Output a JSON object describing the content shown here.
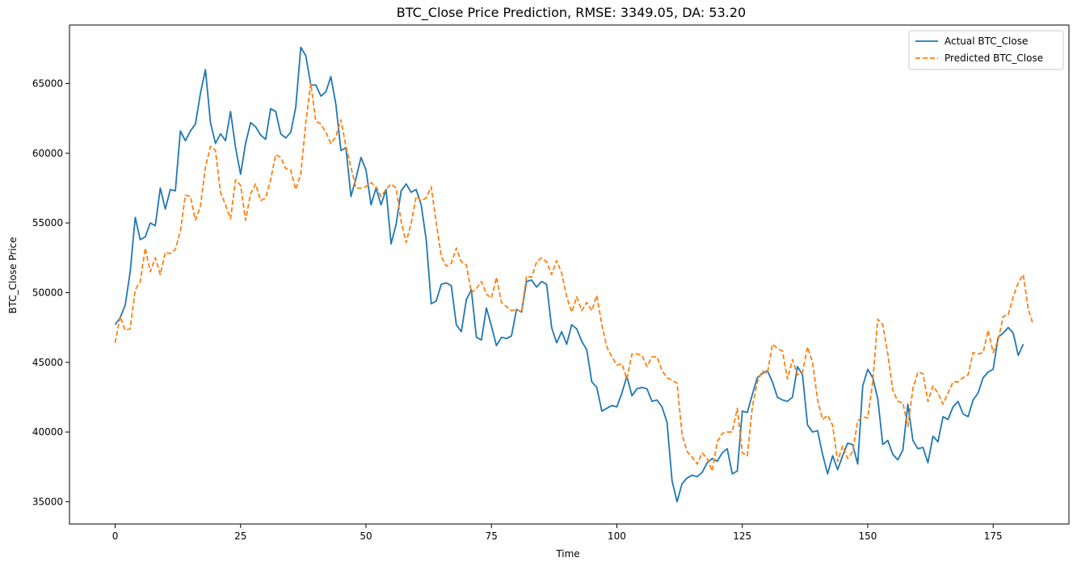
{
  "chart_data": {
    "type": "line",
    "title": "BTC_Close Price Prediction, RMSE: 3349.05, DA: 53.20",
    "xlabel": "Time",
    "ylabel": "BTC_Close Price",
    "xlim": [
      -9.1,
      190.1
    ],
    "ylim": [
      33400,
      69200
    ],
    "xticks": [
      0,
      25,
      50,
      75,
      100,
      125,
      150,
      175
    ],
    "yticks": [
      35000,
      40000,
      45000,
      50000,
      55000,
      60000,
      65000
    ],
    "grid": false,
    "legend_position": "top-right",
    "series": [
      {
        "name": "Actual BTC_Close",
        "color": "#1f77b4",
        "linestyle": "solid",
        "values": [
          47700,
          48200,
          49100,
          51500,
          55400,
          53800,
          54000,
          55000,
          54800,
          57500,
          56000,
          57400,
          57300,
          61600,
          60900,
          61600,
          62100,
          64300,
          66000,
          62200,
          60700,
          61400,
          60900,
          63000,
          60400,
          58500,
          60700,
          62200,
          61900,
          61300,
          61000,
          63200,
          63000,
          61400,
          61100,
          61500,
          63300,
          67600,
          67000,
          64900,
          64900,
          64100,
          64400,
          65500,
          63500,
          60200,
          60400,
          56900,
          58200,
          59700,
          58800,
          56300,
          57500,
          56300,
          57400,
          53500,
          54900,
          57300,
          57800,
          57200,
          57400,
          56300,
          53800,
          49200,
          49400,
          50600,
          50700,
          50500,
          47700,
          47200,
          49500,
          50200,
          46800,
          46600,
          48900,
          47600,
          46200,
          46800,
          46700,
          46900,
          48800,
          48600,
          50800,
          50900,
          50400,
          50800,
          50600,
          47500,
          46400,
          47200,
          46300,
          47700,
          47400,
          46500,
          45900,
          43600,
          43200,
          41500,
          41700,
          41900,
          41800,
          42800,
          44000,
          42600,
          43100,
          43200,
          43100,
          42200,
          42300,
          41800,
          40700,
          36500,
          35000,
          36300,
          36700,
          36900,
          36800,
          37100,
          37800,
          38100,
          37900,
          38500,
          38800,
          37000,
          37200,
          41500,
          41400,
          42700,
          43900,
          44200,
          44400,
          43600,
          42500,
          42300,
          42200,
          42500,
          44700,
          44100,
          40500,
          40000,
          40100,
          38400,
          37000,
          38300,
          37300,
          38300,
          39200,
          39100,
          37700,
          43300,
          44500,
          43900,
          42400,
          39100,
          39400,
          38400,
          38000,
          38700,
          42000,
          39400,
          38800,
          38900,
          37800,
          39700,
          39300,
          41100,
          40900,
          41800,
          42200,
          41300,
          41100,
          42300,
          42800,
          43900,
          44300,
          44500,
          46800,
          47100,
          47500,
          47100,
          45500,
          46300
        ]
      },
      {
        "name": "Predicted BTC_Close",
        "color": "#ff7f0e",
        "linestyle": "dashed",
        "values": [
          46400,
          48300,
          47300,
          47400,
          50200,
          50800,
          53200,
          51500,
          52500,
          51300,
          52900,
          52800,
          53100,
          54400,
          57000,
          56900,
          55200,
          56200,
          59000,
          60500,
          60200,
          57200,
          56300,
          55300,
          58100,
          57700,
          55200,
          57100,
          57800,
          56600,
          56800,
          58100,
          59900,
          59700,
          58900,
          58800,
          57400,
          58500,
          62200,
          65000,
          62300,
          62100,
          61500,
          60700,
          61200,
          62400,
          60500,
          59000,
          57500,
          57500,
          57600,
          57900,
          57600,
          56900,
          57400,
          57800,
          57500,
          55100,
          53600,
          55000,
          56900,
          56600,
          56800,
          57600,
          55000,
          52600,
          51900,
          52100,
          53200,
          52200,
          52000,
          50000,
          50300,
          50800,
          49900,
          49600,
          51100,
          49300,
          49000,
          48700,
          48800,
          48600,
          51200,
          51100,
          52200,
          52500,
          52200,
          51300,
          52300,
          51400,
          49700,
          48600,
          49700,
          48700,
          49300,
          48700,
          49800,
          47700,
          46100,
          45400,
          44800,
          44900,
          43800,
          45600,
          45600,
          45500,
          44700,
          45400,
          45400,
          44400,
          43900,
          43700,
          43500,
          39800,
          38600,
          38200,
          37700,
          38500,
          38100,
          37200,
          39300,
          39900,
          40000,
          40000,
          41700,
          38500,
          38300,
          41800,
          43600,
          44400,
          44200,
          46300,
          46000,
          45800,
          43800,
          45200,
          44100,
          44300,
          46100,
          45000,
          42300,
          40900,
          41200,
          40500,
          37900,
          39000,
          38100,
          38600,
          40800,
          41100,
          41000,
          43600,
          48100,
          47700,
          45600,
          43000,
          42200,
          42100,
          40400,
          43100,
          44300,
          44200,
          42200,
          43300,
          42800,
          42000,
          42800,
          43600,
          43600,
          43900,
          44100,
          45700,
          45600,
          45700,
          47300,
          45700,
          46600,
          48300,
          48400,
          49700,
          50700,
          51300,
          48800,
          47700
        ]
      }
    ]
  }
}
